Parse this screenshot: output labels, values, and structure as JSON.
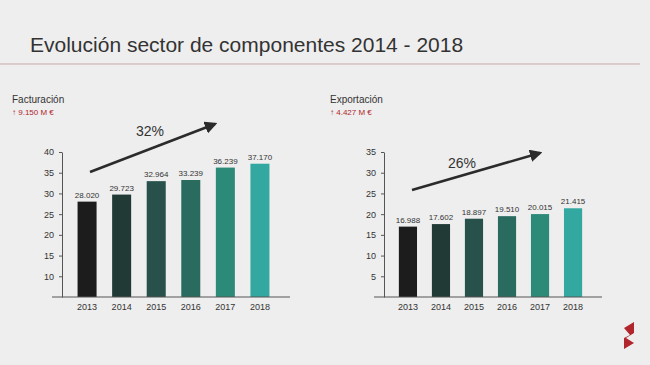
{
  "title": "Evolución sector de componentes 2014 - 2018",
  "chart_data": [
    {
      "type": "bar",
      "title": "Facturación",
      "subtitle": "↑ 9.150 M €",
      "annotations": [
        "32%"
      ],
      "categories": [
        "2013",
        "2014",
        "2015",
        "2016",
        "2017",
        "2018"
      ],
      "values": [
        28.02,
        29.723,
        32.964,
        33.239,
        36.239,
        37.17
      ],
      "value_labels": [
        "28.020",
        "29.723",
        "32.964",
        "33.239",
        "36.239",
        "37.170"
      ],
      "colors": [
        "#1c1c1c",
        "#213a36",
        "#27514a",
        "#2a6b5f",
        "#2c8a78",
        "#33a8a0"
      ],
      "ylim": [
        5,
        40
      ],
      "yticks": [
        10,
        15,
        20,
        25,
        30,
        35,
        40
      ],
      "grid": false,
      "data_labels": true
    },
    {
      "type": "bar",
      "title": "Exportación",
      "subtitle": "↑ 4.427 M €",
      "annotations": [
        "26%"
      ],
      "categories": [
        "2013",
        "2014",
        "2015",
        "2016",
        "2017",
        "2018"
      ],
      "values": [
        16.988,
        17.602,
        18.897,
        19.51,
        20.015,
        21.415
      ],
      "value_labels": [
        "16.988",
        "17.602",
        "18.897",
        "19.510",
        "20.015",
        "21.415"
      ],
      "colors": [
        "#1c1c1c",
        "#213a36",
        "#27514a",
        "#2a6b5f",
        "#2c8a78",
        "#33a8a0"
      ],
      "ylim": [
        0,
        35
      ],
      "yticks": [
        5,
        10,
        15,
        20,
        25,
        30,
        35
      ],
      "grid": false,
      "data_labels": true
    }
  ]
}
